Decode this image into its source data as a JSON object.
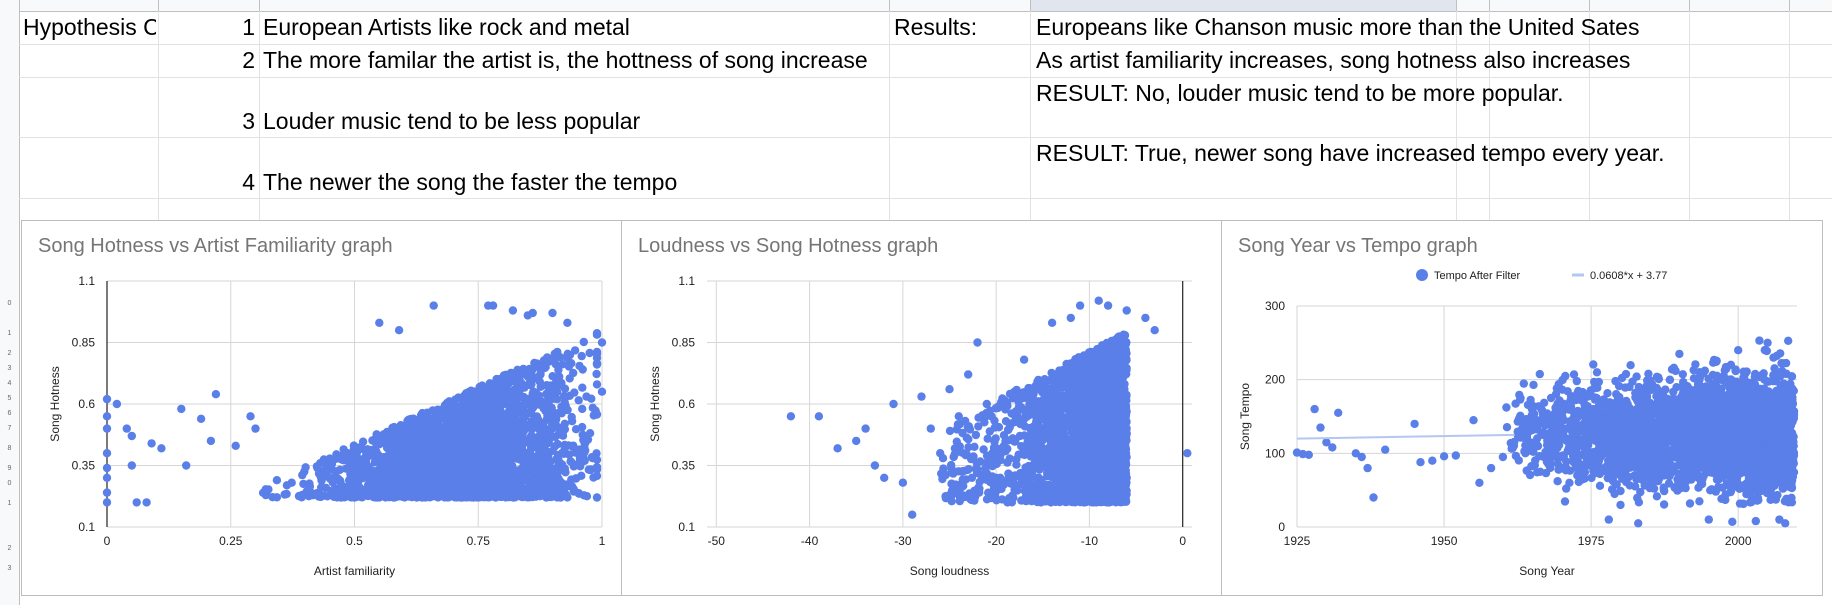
{
  "sheet": {
    "row1": {
      "a": "Hypothesis C",
      "n": "1",
      "hypothesis": "European Artists like rock and metal",
      "results_label": "Results:",
      "result": "Europeans like Chanson music more than the United Sates"
    },
    "row2": {
      "n": "2",
      "hypothesis": "The more familar the artist is, the hottness of song increase",
      "result": "As artist familiarity increases, song hotness also increases"
    },
    "row3": {
      "n": "3",
      "hypothesis": "Louder music tend to be less popular",
      "result": "RESULT: No, louder music tend to be more popular."
    },
    "row4": {
      "n": "4",
      "hypothesis": "The newer the song the faster the tempo",
      "result": "RESULT: True, newer song have increased tempo every year."
    }
  },
  "colors": {
    "point": "#5b7fe8",
    "trendline": "#b3c7f0",
    "grid": "#d6d6d6",
    "zero_axis": "#333333"
  },
  "chart_data": [
    {
      "type": "scatter",
      "title": "Song Hotness vs Artist Familiarity graph",
      "xlabel": "Artist familiarity",
      "ylabel": "Song Hotness",
      "xlim": [
        0,
        1
      ],
      "ylim": [
        0.1,
        1.1
      ],
      "xticks": [
        "0",
        "0.25",
        "0.5",
        "0.75",
        "1"
      ],
      "yticks": [
        "0.1",
        "0.35",
        "0.6",
        "0.85",
        "1.1"
      ],
      "grid": true,
      "legend": "none",
      "density": {
        "x_center": 0.72,
        "x_spread": 0.13,
        "y_floor": 0.22,
        "y_top_at_max": 0.9,
        "count": 3000
      },
      "points": [
        [
          0,
          0.62
        ],
        [
          0,
          0.55
        ],
        [
          0,
          0.5
        ],
        [
          0,
          0.4
        ],
        [
          0,
          0.34
        ],
        [
          0,
          0.3
        ],
        [
          0,
          0.24
        ],
        [
          0,
          0.2
        ],
        [
          0.02,
          0.6
        ],
        [
          0.04,
          0.5
        ],
        [
          0.05,
          0.47
        ],
        [
          0.05,
          0.35
        ],
        [
          0.06,
          0.2
        ],
        [
          0.08,
          0.2
        ],
        [
          0.09,
          0.44
        ],
        [
          0.11,
          0.42
        ],
        [
          0.15,
          0.58
        ],
        [
          0.16,
          0.35
        ],
        [
          0.19,
          0.54
        ],
        [
          0.21,
          0.45
        ],
        [
          0.22,
          0.64
        ],
        [
          0.26,
          0.43
        ],
        [
          0.29,
          0.55
        ],
        [
          0.3,
          0.5
        ],
        [
          0.55,
          0.93
        ],
        [
          0.59,
          0.9
        ],
        [
          0.66,
          1.0
        ],
        [
          0.77,
          1.0
        ],
        [
          0.78,
          1.0
        ],
        [
          0.82,
          0.98
        ],
        [
          0.85,
          0.96
        ],
        [
          0.86,
          0.97
        ],
        [
          0.9,
          0.97
        ],
        [
          0.93,
          0.93
        ],
        [
          1.0,
          0.85
        ],
        [
          1.0,
          0.65
        ],
        [
          0.96,
          0.58
        ]
      ]
    },
    {
      "type": "scatter",
      "title": "Loudness vs Song Hotness graph",
      "xlabel": "Song loudness",
      "ylabel": "Song Hotness",
      "xlim": [
        -51,
        1
      ],
      "ylim": [
        0.1,
        1.1
      ],
      "xticks": [
        "-50",
        "-40",
        "-30",
        "-20",
        "-10",
        "0"
      ],
      "yticks": [
        "0.1",
        "0.35",
        "0.6",
        "0.85",
        "1.1"
      ],
      "grid": true,
      "legend": "none",
      "density": {
        "x_center": -6,
        "x_spread": 4.5,
        "y_floor": 0.2,
        "y_top_at_max": 0.95,
        "count": 3000
      },
      "points": [
        [
          -42,
          0.55
        ],
        [
          -39,
          0.55
        ],
        [
          -37,
          0.42
        ],
        [
          -35,
          0.45
        ],
        [
          -34,
          0.5
        ],
        [
          -33,
          0.35
        ],
        [
          -32,
          0.3
        ],
        [
          -31,
          0.6
        ],
        [
          -30,
          0.28
        ],
        [
          -29,
          0.15
        ],
        [
          -28,
          0.63
        ],
        [
          -27,
          0.5
        ],
        [
          -26,
          0.4
        ],
        [
          -25,
          0.66
        ],
        [
          -24,
          0.55
        ],
        [
          -23,
          0.72
        ],
        [
          -22,
          0.85
        ],
        [
          -21,
          0.6
        ],
        [
          -20,
          0.3
        ],
        [
          -19,
          0.45
        ],
        [
          -17,
          0.78
        ],
        [
          -14,
          0.93
        ],
        [
          -12,
          0.95
        ],
        [
          -11,
          1.0
        ],
        [
          -9,
          1.02
        ],
        [
          -8,
          1.0
        ],
        [
          -6,
          0.98
        ],
        [
          -4,
          0.95
        ],
        [
          -3,
          0.9
        ],
        [
          0.5,
          0.4
        ]
      ]
    },
    {
      "type": "scatter",
      "title": "Song Year vs Tempo graph",
      "xlabel": "Song Year",
      "ylabel": "Song Tempo",
      "xlim": [
        1925,
        2010
      ],
      "ylim": [
        0,
        300
      ],
      "xticks": [
        "1925",
        "1950",
        "1975",
        "2000"
      ],
      "yticks": [
        "0",
        "100",
        "200",
        "300"
      ],
      "grid": true,
      "legend": "top",
      "legend_entries": [
        "Tempo After Filter",
        "0.0608*x + 3.77"
      ],
      "trendline": {
        "from": [
          1925,
          120
        ],
        "to": [
          1962,
          125
        ]
      },
      "density": {
        "x_start": 1960,
        "y_center": 125,
        "y_spread": 35,
        "count": 3000
      },
      "points": [
        [
          1925,
          101
        ],
        [
          1926,
          99
        ],
        [
          1927,
          98
        ],
        [
          1928,
          160
        ],
        [
          1929,
          135
        ],
        [
          1930,
          115
        ],
        [
          1931,
          108
        ],
        [
          1932,
          155
        ],
        [
          1935,
          100
        ],
        [
          1936,
          95
        ],
        [
          1937,
          80
        ],
        [
          1938,
          40
        ],
        [
          1940,
          105
        ],
        [
          1945,
          140
        ],
        [
          1946,
          88
        ],
        [
          1948,
          90
        ],
        [
          1950,
          96
        ],
        [
          1952,
          97
        ],
        [
          1955,
          145
        ],
        [
          1956,
          60
        ],
        [
          1958,
          80
        ],
        [
          1960,
          95
        ],
        [
          1963,
          175
        ],
        [
          1965,
          165
        ],
        [
          1970,
          95
        ],
        [
          1976,
          210
        ],
        [
          1978,
          10
        ],
        [
          1979,
          45
        ],
        [
          1980,
          30
        ],
        [
          1985,
          160
        ],
        [
          1990,
          235
        ],
        [
          2000,
          240
        ],
        [
          2005,
          250
        ],
        [
          2006,
          230
        ],
        [
          2007,
          10
        ],
        [
          2008,
          5
        ],
        [
          2003,
          8
        ],
        [
          1999,
          7
        ],
        [
          1995,
          10
        ],
        [
          1983,
          5
        ]
      ]
    }
  ]
}
